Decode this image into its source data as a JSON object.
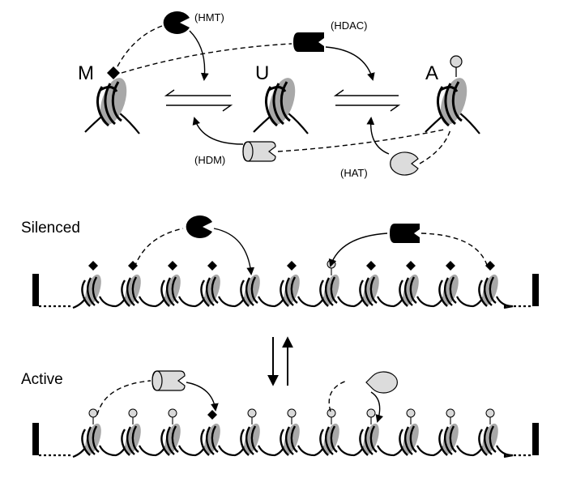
{
  "states": {
    "m_label": "M",
    "u_label": "U",
    "a_label": "A"
  },
  "enzymes": {
    "hmt": "(HMT)",
    "hdac": "(HDAC)",
    "hdm": "(HDM)",
    "hat": "(HAT)"
  },
  "rows": {
    "silenced": "Silenced",
    "active": "Active"
  },
  "silenced_row_marks": [
    "M",
    "M",
    "M",
    "M",
    "U",
    "M",
    "A",
    "M",
    "M",
    "M",
    "M"
  ],
  "active_row_marks": [
    "A",
    "A",
    "A",
    "M",
    "A",
    "A",
    "A",
    "A",
    "A",
    "A",
    "A"
  ],
  "colors": {
    "ink": "#000000",
    "nucleosome_gray": "#a8a8a8",
    "enzyme_light": "#dcdcdc",
    "enzyme_dark": "#000000",
    "acetyl_mark": "#d9d9d9"
  }
}
